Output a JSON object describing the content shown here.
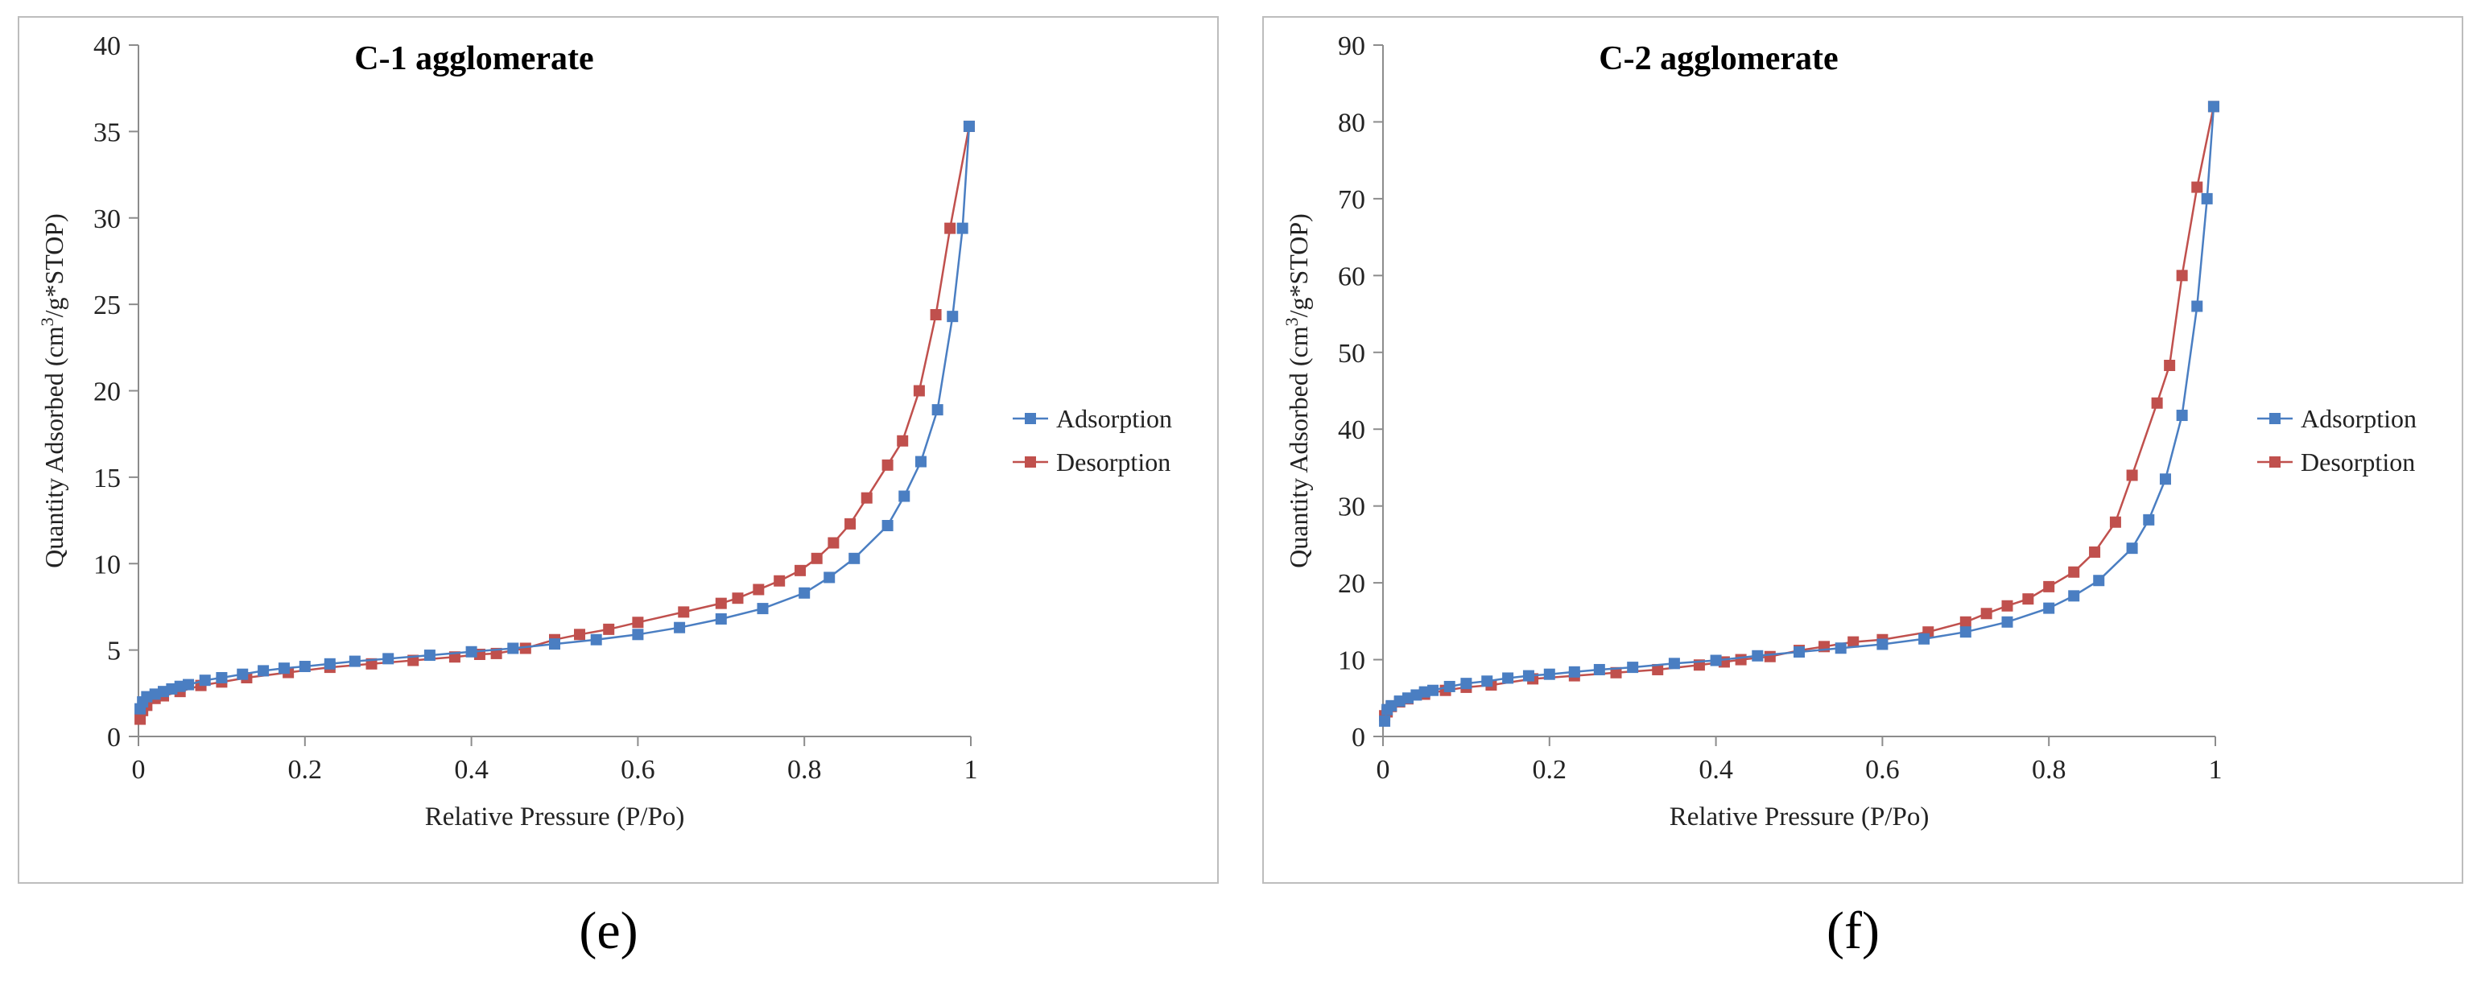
{
  "colors": {
    "adsorption": "#4a7ec2",
    "desorption": "#c0504d",
    "axis": "#8c8c8c"
  },
  "captions": {
    "left": "(e)",
    "right": "(f)"
  },
  "chart_data": [
    {
      "type": "line",
      "title": "C-1 agglomerate",
      "xlabel": "Relative Pressure (P/Po)",
      "ylabel_parts": [
        "Quantity Adsorbed  (cm",
        "3",
        "/g*STOP)"
      ],
      "xlim": [
        0,
        1
      ],
      "ylim": [
        0,
        40
      ],
      "xticks": [
        0,
        0.2,
        0.4,
        0.6,
        0.8,
        1
      ],
      "xtick_labels": [
        "0",
        "0.2",
        "0.4",
        "0.6",
        "0.8",
        "1"
      ],
      "yticks": [
        0,
        5,
        10,
        15,
        20,
        25,
        30,
        35,
        40
      ],
      "ytick_labels": [
        "0",
        "5",
        "10",
        "15",
        "20",
        "25",
        "30",
        "35",
        "40"
      ],
      "legend_position": "right",
      "series": [
        {
          "name": "Adsorption",
          "points": [
            [
              0.002,
              1.6
            ],
            [
              0.005,
              2.0
            ],
            [
              0.01,
              2.3
            ],
            [
              0.02,
              2.45
            ],
            [
              0.03,
              2.6
            ],
            [
              0.04,
              2.75
            ],
            [
              0.05,
              2.9
            ],
            [
              0.06,
              3.0
            ],
            [
              0.08,
              3.25
            ],
            [
              0.1,
              3.4
            ],
            [
              0.125,
              3.6
            ],
            [
              0.15,
              3.8
            ],
            [
              0.175,
              3.95
            ],
            [
              0.2,
              4.05
            ],
            [
              0.23,
              4.2
            ],
            [
              0.26,
              4.35
            ],
            [
              0.3,
              4.5
            ],
            [
              0.35,
              4.7
            ],
            [
              0.4,
              4.9
            ],
            [
              0.45,
              5.1
            ],
            [
              0.5,
              5.35
            ],
            [
              0.55,
              5.6
            ],
            [
              0.6,
              5.9
            ],
            [
              0.65,
              6.3
            ],
            [
              0.7,
              6.8
            ],
            [
              0.75,
              7.4
            ],
            [
              0.8,
              8.3
            ],
            [
              0.83,
              9.2
            ],
            [
              0.86,
              10.3
            ],
            [
              0.9,
              12.2
            ],
            [
              0.92,
              13.9
            ],
            [
              0.94,
              15.9
            ],
            [
              0.96,
              18.9
            ],
            [
              0.978,
              24.3
            ],
            [
              0.99,
              29.4
            ],
            [
              0.998,
              35.3
            ]
          ]
        },
        {
          "name": "Desorption",
          "points": [
            [
              0.998,
              35.3
            ],
            [
              0.975,
              29.4
            ],
            [
              0.958,
              24.4
            ],
            [
              0.938,
              20.0
            ],
            [
              0.918,
              17.1
            ],
            [
              0.9,
              15.7
            ],
            [
              0.875,
              13.8
            ],
            [
              0.855,
              12.3
            ],
            [
              0.835,
              11.2
            ],
            [
              0.815,
              10.3
            ],
            [
              0.795,
              9.6
            ],
            [
              0.77,
              9.0
            ],
            [
              0.745,
              8.5
            ],
            [
              0.72,
              8.0
            ],
            [
              0.7,
              7.7
            ],
            [
              0.655,
              7.2
            ],
            [
              0.6,
              6.6
            ],
            [
              0.565,
              6.2
            ],
            [
              0.53,
              5.9
            ],
            [
              0.5,
              5.6
            ],
            [
              0.465,
              5.1
            ],
            [
              0.43,
              4.8
            ],
            [
              0.41,
              4.75
            ],
            [
              0.38,
              4.6
            ],
            [
              0.33,
              4.4
            ],
            [
              0.28,
              4.2
            ],
            [
              0.23,
              4.0
            ],
            [
              0.18,
              3.7
            ],
            [
              0.13,
              3.4
            ],
            [
              0.1,
              3.15
            ],
            [
              0.075,
              2.95
            ],
            [
              0.05,
              2.6
            ],
            [
              0.03,
              2.35
            ],
            [
              0.02,
              2.2
            ],
            [
              0.01,
              1.8
            ],
            [
              0.005,
              1.5
            ],
            [
              0.002,
              1.0
            ]
          ]
        }
      ]
    },
    {
      "type": "line",
      "title": "C-2 agglomerate",
      "xlabel": "Relative Pressure (P/Po)",
      "ylabel_parts": [
        "Quantity Adsorbed  (cm",
        "3",
        "/g*STOP)"
      ],
      "xlim": [
        0,
        1
      ],
      "ylim": [
        0,
        90
      ],
      "xticks": [
        0,
        0.2,
        0.4,
        0.6,
        0.8,
        1
      ],
      "xtick_labels": [
        "0",
        "0.2",
        "0.4",
        "0.6",
        "0.8",
        "1"
      ],
      "yticks": [
        0,
        10,
        20,
        30,
        40,
        50,
        60,
        70,
        80,
        90
      ],
      "ytick_labels": [
        "0",
        "10",
        "20",
        "30",
        "40",
        "50",
        "60",
        "70",
        "80",
        "90"
      ],
      "legend_position": "right",
      "series": [
        {
          "name": "Adsorption",
          "points": [
            [
              0.002,
              2.0
            ],
            [
              0.005,
              3.5
            ],
            [
              0.01,
              4.0
            ],
            [
              0.02,
              4.6
            ],
            [
              0.03,
              5.0
            ],
            [
              0.04,
              5.4
            ],
            [
              0.05,
              5.8
            ],
            [
              0.06,
              6.0
            ],
            [
              0.08,
              6.5
            ],
            [
              0.1,
              6.9
            ],
            [
              0.125,
              7.2
            ],
            [
              0.15,
              7.6
            ],
            [
              0.175,
              7.9
            ],
            [
              0.2,
              8.1
            ],
            [
              0.23,
              8.4
            ],
            [
              0.26,
              8.7
            ],
            [
              0.3,
              9.0
            ],
            [
              0.35,
              9.5
            ],
            [
              0.4,
              9.9
            ],
            [
              0.45,
              10.5
            ],
            [
              0.5,
              11.0
            ],
            [
              0.55,
              11.5
            ],
            [
              0.6,
              12.0
            ],
            [
              0.65,
              12.7
            ],
            [
              0.7,
              13.6
            ],
            [
              0.75,
              14.9
            ],
            [
              0.8,
              16.7
            ],
            [
              0.83,
              18.3
            ],
            [
              0.86,
              20.3
            ],
            [
              0.9,
              24.5
            ],
            [
              0.92,
              28.2
            ],
            [
              0.94,
              33.5
            ],
            [
              0.96,
              41.8
            ],
            [
              0.978,
              56.0
            ],
            [
              0.99,
              70.0
            ],
            [
              0.998,
              82.0
            ]
          ]
        },
        {
          "name": "Desorption",
          "points": [
            [
              0.998,
              82.0
            ],
            [
              0.978,
              71.5
            ],
            [
              0.96,
              60.0
            ],
            [
              0.945,
              48.3
            ],
            [
              0.93,
              43.4
            ],
            [
              0.9,
              34.0
            ],
            [
              0.88,
              27.9
            ],
            [
              0.855,
              24.0
            ],
            [
              0.83,
              21.4
            ],
            [
              0.8,
              19.5
            ],
            [
              0.775,
              17.9
            ],
            [
              0.75,
              17.0
            ],
            [
              0.725,
              16.0
            ],
            [
              0.7,
              14.9
            ],
            [
              0.655,
              13.6
            ],
            [
              0.6,
              12.6
            ],
            [
              0.565,
              12.3
            ],
            [
              0.53,
              11.7
            ],
            [
              0.5,
              11.2
            ],
            [
              0.465,
              10.4
            ],
            [
              0.43,
              10.0
            ],
            [
              0.41,
              9.7
            ],
            [
              0.38,
              9.3
            ],
            [
              0.33,
              8.7
            ],
            [
              0.28,
              8.3
            ],
            [
              0.23,
              7.9
            ],
            [
              0.18,
              7.5
            ],
            [
              0.13,
              6.7
            ],
            [
              0.1,
              6.4
            ],
            [
              0.075,
              6.0
            ],
            [
              0.05,
              5.5
            ],
            [
              0.03,
              4.9
            ],
            [
              0.02,
              4.5
            ],
            [
              0.01,
              3.9
            ],
            [
              0.005,
              3.2
            ],
            [
              0.002,
              2.7
            ]
          ]
        }
      ]
    }
  ]
}
